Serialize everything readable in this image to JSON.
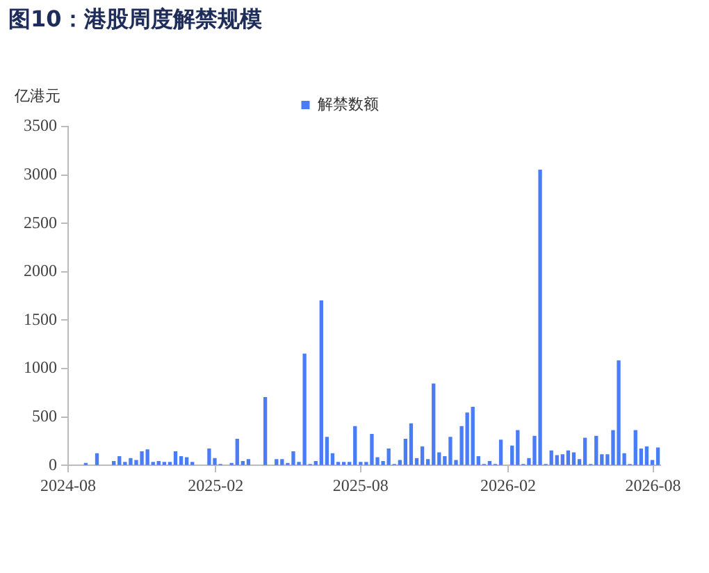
{
  "chart_data": {
    "type": "bar",
    "title": "图10：港股周度解禁规模",
    "ylabel": "亿港元",
    "x": [
      "2024-08-23",
      "2024-09-06",
      "2024-09-27",
      "2024-10-04",
      "2024-10-11",
      "2024-10-18",
      "2024-10-25",
      "2024-11-01",
      "2024-11-08",
      "2024-11-15",
      "2024-11-22",
      "2024-11-29",
      "2024-12-06",
      "2024-12-13",
      "2024-12-20",
      "2024-12-27",
      "2025-01-03",
      "2025-01-24",
      "2025-01-31",
      "2025-02-07",
      "2025-02-21",
      "2025-02-28",
      "2025-03-07",
      "2025-03-14",
      "2025-04-04",
      "2025-04-18",
      "2025-04-25",
      "2025-05-02",
      "2025-05-09",
      "2025-05-16",
      "2025-05-23",
      "2025-05-30",
      "2025-06-06",
      "2025-06-13",
      "2025-06-20",
      "2025-06-27",
      "2025-07-04",
      "2025-07-11",
      "2025-07-18",
      "2025-07-25",
      "2025-08-01",
      "2025-08-08",
      "2025-08-15",
      "2025-08-22",
      "2025-08-29",
      "2025-09-05",
      "2025-09-12",
      "2025-09-19",
      "2025-09-26",
      "2025-10-03",
      "2025-10-10",
      "2025-10-17",
      "2025-10-24",
      "2025-10-31",
      "2025-11-07",
      "2025-11-14",
      "2025-11-21",
      "2025-11-28",
      "2025-12-05",
      "2025-12-12",
      "2025-12-19",
      "2025-12-26",
      "2026-01-02",
      "2026-01-09",
      "2026-01-16",
      "2026-01-23",
      "2026-02-06",
      "2026-02-13",
      "2026-02-20",
      "2026-02-27",
      "2026-03-06",
      "2026-03-13",
      "2026-03-20",
      "2026-03-27",
      "2026-04-03",
      "2026-04-10",
      "2026-04-17",
      "2026-04-24",
      "2026-05-01",
      "2026-05-08",
      "2026-05-15",
      "2026-05-22",
      "2026-05-29",
      "2026-06-05",
      "2026-06-12",
      "2026-06-19",
      "2026-06-26",
      "2026-07-03",
      "2026-07-10",
      "2026-07-17",
      "2026-07-24",
      "2026-07-31",
      "2026-08-07"
    ],
    "series": [
      {
        "name": "解禁数额",
        "color": "#4a7cf7",
        "values": [
          20,
          120,
          40,
          90,
          30,
          70,
          50,
          140,
          160,
          30,
          40,
          30,
          30,
          140,
          90,
          80,
          30,
          170,
          70,
          10,
          20,
          270,
          40,
          60,
          700,
          60,
          60,
          20,
          140,
          30,
          1150,
          10,
          40,
          1700,
          290,
          120,
          30,
          30,
          30,
          400,
          30,
          30,
          320,
          80,
          40,
          170,
          10,
          50,
          270,
          430,
          70,
          190,
          60,
          840,
          130,
          90,
          290,
          50,
          400,
          540,
          600,
          90,
          10,
          40,
          10,
          260,
          200,
          360,
          10,
          70,
          300,
          3050,
          10,
          150,
          100,
          110,
          150,
          130,
          60,
          280,
          10,
          300,
          110,
          110,
          360,
          1080,
          120,
          10,
          360,
          170,
          190,
          50,
          180
        ]
      }
    ],
    "xlim": [
      "2024-08-01",
      "2026-08-10"
    ],
    "xticks": [
      {
        "value": "2024-08-01",
        "label": "2024-08"
      },
      {
        "value": "2025-02-01",
        "label": "2025-02"
      },
      {
        "value": "2025-08-01",
        "label": "2025-08"
      },
      {
        "value": "2026-02-01",
        "label": "2026-02"
      },
      {
        "value": "2026-08-01",
        "label": "2026-08"
      }
    ],
    "ylim": [
      0,
      3500
    ],
    "yticks": [
      0,
      500,
      1000,
      1500,
      2000,
      2500,
      3000,
      3500
    ],
    "grid": false,
    "legend": "top"
  }
}
